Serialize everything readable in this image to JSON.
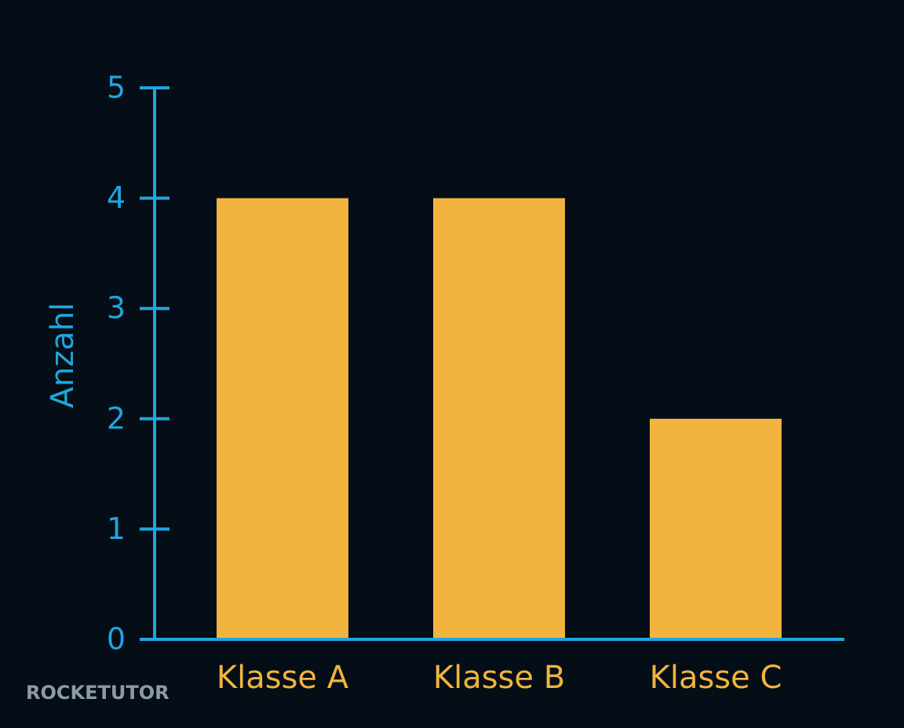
{
  "chart_data": {
    "type": "bar",
    "y_label": "Anzahl",
    "categories": [
      "Klasse A",
      "Klasse B",
      "Klasse C"
    ],
    "values": [
      4,
      4,
      2
    ],
    "color": "#f0b43f",
    "axis_color": "#1ea6df",
    "ylim": [
      0,
      5
    ],
    "yticks": [
      0,
      1,
      2,
      3,
      4,
      5
    ],
    "grid": false,
    "watermark": "ROCKETUTOR"
  }
}
